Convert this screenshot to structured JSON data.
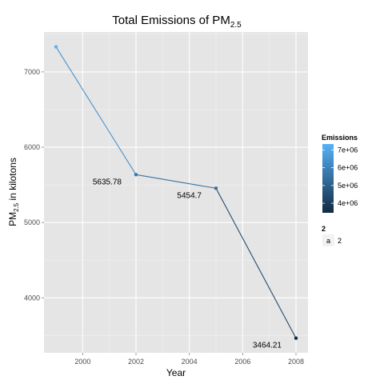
{
  "chart_data": {
    "type": "line",
    "title_main": "Total Emissions of PM",
    "title_sub": "2.5",
    "xlabel": "Year",
    "ylabel_main": "PM",
    "ylabel_sub": "2.5",
    "ylabel_rest": " in kilotons",
    "x": [
      1999,
      2002,
      2005,
      2008
    ],
    "y": [
      7332.97,
      5635.78,
      5454.7,
      3464.21
    ],
    "point_labels": [
      "",
      "5635.78",
      "5454.7",
      "3464.21"
    ],
    "xlim": [
      1998.55,
      2008.45
    ],
    "ylim": [
      3270,
      7530
    ],
    "xticks": [
      2000,
      2002,
      2004,
      2006,
      2008
    ],
    "xtick_labels": [
      "2000",
      "2002",
      "2004",
      "2006",
      "2008"
    ],
    "yticks": [
      4000,
      5000,
      6000,
      7000
    ],
    "ytick_labels": [
      "4000",
      "5000",
      "6000",
      "7000"
    ],
    "grid": true,
    "legend": {
      "placement": "right",
      "colorbar_title": "Emissions",
      "colorbar_labels": [
        "7e+06",
        "6e+06",
        "5e+06",
        "4e+06"
      ],
      "colorbar_values": [
        7000000,
        6000000,
        5000000,
        4000000
      ],
      "colorbar_range": [
        3464210,
        7332970
      ],
      "color_low": "#132b43",
      "color_high": "#56b1f7",
      "key_title": "2",
      "key_glyph": "a",
      "key_label": "2"
    },
    "colors": {
      "panel": "#e5e5e5",
      "grid_major": "#ffffff",
      "grid_minor": "#f2f2f2"
    }
  }
}
